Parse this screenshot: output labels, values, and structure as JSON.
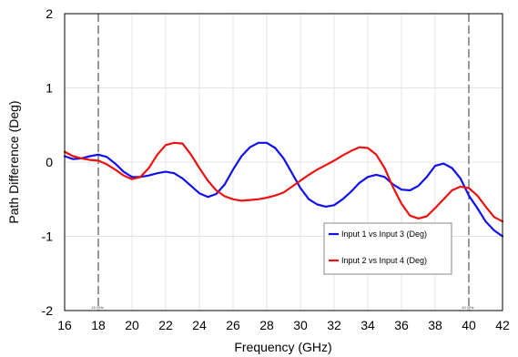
{
  "chart_data": {
    "type": "line",
    "title": "",
    "xlabel": "Frequency (GHz)",
    "ylabel": "Path Difference (Deg)",
    "xlim": [
      16,
      42
    ],
    "ylim": [
      -2,
      2
    ],
    "x_ticks": [
      16,
      18,
      20,
      22,
      24,
      26,
      28,
      30,
      32,
      34,
      36,
      38,
      40,
      42
    ],
    "y_ticks": [
      -2,
      -1,
      0,
      1,
      2
    ],
    "grid": true,
    "legend_position": "lower-right",
    "markers": [
      {
        "x": 18,
        "label": "18 GHz"
      },
      {
        "x": 40,
        "label": "40 GHz"
      }
    ],
    "series": [
      {
        "name": "Input 1 vs Input 3 (Deg)",
        "color": "#1010ee",
        "x": [
          16,
          16.5,
          17,
          17.5,
          18,
          18.5,
          19,
          19.5,
          20,
          20.5,
          21,
          21.5,
          22,
          22.5,
          23,
          23.5,
          24,
          24.5,
          25,
          25.5,
          26,
          26.5,
          27,
          27.5,
          28,
          28.5,
          29,
          29.5,
          30,
          30.5,
          31,
          31.5,
          32,
          32.5,
          33,
          33.5,
          34,
          34.5,
          35,
          35.5,
          36,
          36.5,
          37,
          37.5,
          38,
          38.5,
          39,
          39.5,
          40,
          40.5,
          41,
          41.5,
          42
        ],
        "y": [
          0.08,
          0.04,
          0.05,
          0.08,
          0.1,
          0.07,
          -0.02,
          -0.13,
          -0.2,
          -0.2,
          -0.18,
          -0.15,
          -0.13,
          -0.15,
          -0.22,
          -0.32,
          -0.42,
          -0.47,
          -0.43,
          -0.3,
          -0.1,
          0.08,
          0.2,
          0.26,
          0.26,
          0.19,
          0.05,
          -0.15,
          -0.35,
          -0.5,
          -0.57,
          -0.6,
          -0.58,
          -0.5,
          -0.4,
          -0.28,
          -0.2,
          -0.17,
          -0.2,
          -0.3,
          -0.37,
          -0.38,
          -0.32,
          -0.2,
          -0.05,
          -0.02,
          -0.08,
          -0.22,
          -0.45,
          -0.62,
          -0.8,
          -0.92,
          -1.0
        ]
      },
      {
        "name": "Input 2 vs Input 4 (Deg)",
        "color": "#ee1010",
        "x": [
          16,
          16.5,
          17,
          17.5,
          18,
          18.5,
          19,
          19.5,
          20,
          20.5,
          21,
          21.5,
          22,
          22.5,
          23,
          23.5,
          24,
          24.5,
          25,
          25.5,
          26,
          26.5,
          27,
          27.5,
          28,
          28.5,
          29,
          29.5,
          30,
          30.5,
          31,
          31.5,
          32,
          32.5,
          33,
          33.5,
          34,
          34.5,
          35,
          35.5,
          36,
          36.5,
          37,
          37.5,
          38,
          38.5,
          39,
          39.5,
          40,
          40.5,
          41,
          41.5,
          42
        ],
        "y": [
          0.14,
          0.08,
          0.05,
          0.03,
          0.02,
          -0.03,
          -0.1,
          -0.18,
          -0.23,
          -0.2,
          -0.08,
          0.1,
          0.23,
          0.26,
          0.25,
          0.1,
          -0.08,
          -0.25,
          -0.38,
          -0.46,
          -0.5,
          -0.52,
          -0.51,
          -0.5,
          -0.48,
          -0.45,
          -0.41,
          -0.33,
          -0.25,
          -0.17,
          -0.1,
          -0.04,
          0.02,
          0.09,
          0.15,
          0.2,
          0.19,
          0.1,
          -0.08,
          -0.34,
          -0.56,
          -0.72,
          -0.76,
          -0.73,
          -0.62,
          -0.5,
          -0.38,
          -0.33,
          -0.35,
          -0.45,
          -0.6,
          -0.74,
          -0.8
        ]
      }
    ]
  }
}
